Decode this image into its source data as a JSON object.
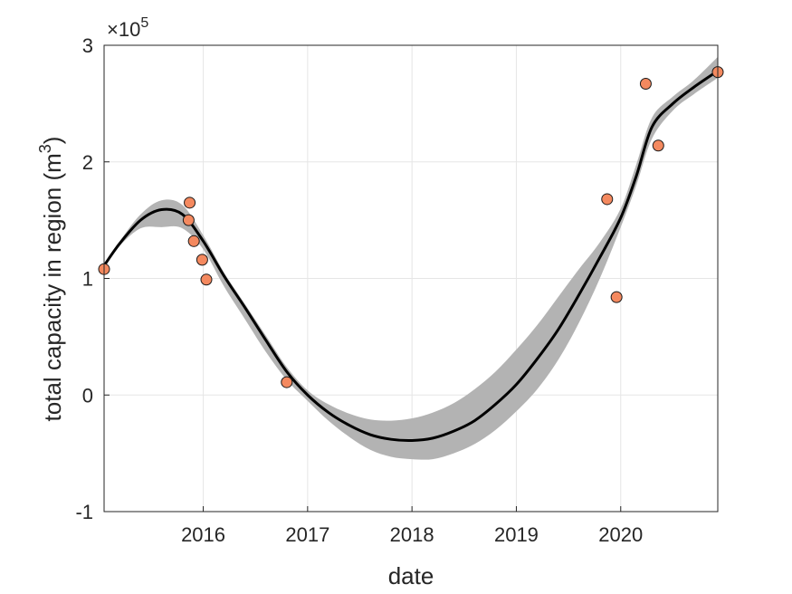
{
  "chart_data": {
    "type": "line",
    "xlabel": "date",
    "ylabel": "total capacity in region (m",
    "ylabel_superscript": "3",
    "ylabel_suffix": ")",
    "y_multiplier_label": "×10",
    "y_multiplier_exponent": "5",
    "x_tick_labels": [
      "2016",
      "2017",
      "2018",
      "2019",
      "2020"
    ],
    "x_ticks": [
      2016,
      2017,
      2018,
      2019,
      2020
    ],
    "y_tick_labels": [
      "-1",
      "0",
      "1",
      "2",
      "3"
    ],
    "y_ticks": [
      -1,
      0,
      1,
      2,
      3
    ],
    "xlim": [
      2015.05,
      2020.93
    ],
    "ylim": [
      -1,
      3
    ],
    "y_units_scale": 100000,
    "grid": true,
    "series": [
      {
        "kind": "fit-line",
        "color": "#000000",
        "points": [
          [
            2015.05,
            1.11
          ],
          [
            2015.2,
            1.3
          ],
          [
            2015.4,
            1.5
          ],
          [
            2015.6,
            1.59
          ],
          [
            2015.8,
            1.55
          ],
          [
            2016.0,
            1.32
          ],
          [
            2016.2,
            1.02
          ],
          [
            2016.4,
            0.75
          ],
          [
            2016.6,
            0.47
          ],
          [
            2016.8,
            0.2
          ],
          [
            2017.0,
            0.0
          ],
          [
            2017.2,
            -0.15
          ],
          [
            2017.4,
            -0.26
          ],
          [
            2017.6,
            -0.34
          ],
          [
            2017.8,
            -0.38
          ],
          [
            2018.0,
            -0.39
          ],
          [
            2018.2,
            -0.37
          ],
          [
            2018.4,
            -0.31
          ],
          [
            2018.6,
            -0.22
          ],
          [
            2018.8,
            -0.08
          ],
          [
            2019.0,
            0.09
          ],
          [
            2019.2,
            0.31
          ],
          [
            2019.4,
            0.56
          ],
          [
            2019.6,
            0.86
          ],
          [
            2019.8,
            1.18
          ],
          [
            2020.0,
            1.52
          ],
          [
            2020.15,
            1.88
          ],
          [
            2020.3,
            2.3
          ],
          [
            2020.5,
            2.5
          ],
          [
            2020.7,
            2.64
          ],
          [
            2020.93,
            2.78
          ]
        ]
      },
      {
        "kind": "confidence-band",
        "color": "#b3b3b3",
        "upper": [
          [
            2015.05,
            1.12
          ],
          [
            2015.2,
            1.32
          ],
          [
            2015.4,
            1.55
          ],
          [
            2015.6,
            1.67
          ],
          [
            2015.8,
            1.63
          ],
          [
            2016.0,
            1.37
          ],
          [
            2016.2,
            1.05
          ],
          [
            2016.4,
            0.78
          ],
          [
            2016.6,
            0.51
          ],
          [
            2016.8,
            0.24
          ],
          [
            2017.0,
            0.04
          ],
          [
            2017.2,
            -0.08
          ],
          [
            2017.4,
            -0.16
          ],
          [
            2017.6,
            -0.21
          ],
          [
            2017.8,
            -0.22
          ],
          [
            2018.0,
            -0.2
          ],
          [
            2018.2,
            -0.15
          ],
          [
            2018.4,
            -0.07
          ],
          [
            2018.6,
            0.05
          ],
          [
            2018.8,
            0.2
          ],
          [
            2019.0,
            0.39
          ],
          [
            2019.2,
            0.6
          ],
          [
            2019.4,
            0.84
          ],
          [
            2019.6,
            1.08
          ],
          [
            2019.8,
            1.31
          ],
          [
            2020.0,
            1.6
          ],
          [
            2020.15,
            1.98
          ],
          [
            2020.3,
            2.38
          ],
          [
            2020.5,
            2.56
          ],
          [
            2020.7,
            2.7
          ],
          [
            2020.93,
            2.9
          ]
        ],
        "lower": [
          [
            2015.05,
            1.1
          ],
          [
            2015.2,
            1.28
          ],
          [
            2015.4,
            1.43
          ],
          [
            2015.6,
            1.44
          ],
          [
            2015.8,
            1.43
          ],
          [
            2016.0,
            1.25
          ],
          [
            2016.2,
            0.93
          ],
          [
            2016.4,
            0.65
          ],
          [
            2016.6,
            0.37
          ],
          [
            2016.8,
            0.13
          ],
          [
            2017.0,
            -0.05
          ],
          [
            2017.2,
            -0.22
          ],
          [
            2017.4,
            -0.36
          ],
          [
            2017.6,
            -0.47
          ],
          [
            2017.8,
            -0.53
          ],
          [
            2018.0,
            -0.55
          ],
          [
            2018.2,
            -0.55
          ],
          [
            2018.4,
            -0.5
          ],
          [
            2018.6,
            -0.42
          ],
          [
            2018.8,
            -0.3
          ],
          [
            2019.0,
            -0.14
          ],
          [
            2019.2,
            0.05
          ],
          [
            2019.4,
            0.3
          ],
          [
            2019.6,
            0.62
          ],
          [
            2019.8,
            1.0
          ],
          [
            2020.0,
            1.44
          ],
          [
            2020.15,
            1.8
          ],
          [
            2020.3,
            2.2
          ],
          [
            2020.5,
            2.44
          ],
          [
            2020.7,
            2.58
          ],
          [
            2020.93,
            2.72
          ]
        ]
      },
      {
        "kind": "observations",
        "color": "#f4895f",
        "points": [
          [
            2015.05,
            1.08
          ],
          [
            2015.87,
            1.65
          ],
          [
            2015.86,
            1.5
          ],
          [
            2015.91,
            1.32
          ],
          [
            2015.99,
            1.16
          ],
          [
            2016.03,
            0.99
          ],
          [
            2016.8,
            0.11
          ],
          [
            2019.87,
            1.68
          ],
          [
            2019.96,
            0.84
          ],
          [
            2020.24,
            2.67
          ],
          [
            2020.36,
            2.14
          ],
          [
            2020.93,
            2.77
          ]
        ]
      }
    ]
  }
}
